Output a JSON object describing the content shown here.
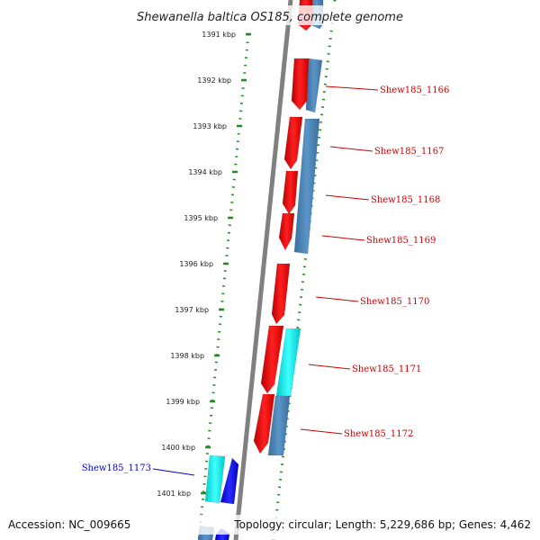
{
  "title": "Shewanella baltica OS185, complete genome",
  "footer": {
    "accession": "Accession: NC_009665",
    "summary": "Topology: circular; Length: 5,229,686 bp; Genes: 4,462"
  },
  "ticks": [
    "1391 kbp",
    "1392 kbp",
    "1393 kbp",
    "1394 kbp",
    "1395 kbp",
    "1396 kbp",
    "1397 kbp",
    "1398 kbp",
    "1399 kbp",
    "1400 kbp",
    "1401 kbp"
  ],
  "genes": [
    {
      "name": "Shew185_1166",
      "color": "#cc0000"
    },
    {
      "name": "Shew185_1167",
      "color": "#cc0000"
    },
    {
      "name": "Shew185_1168",
      "color": "#cc0000"
    },
    {
      "name": "Shew185_1169",
      "color": "#cc0000"
    },
    {
      "name": "Shew185_1170",
      "color": "#cc0000"
    },
    {
      "name": "Shew185_1171",
      "color": "#cc0000"
    },
    {
      "name": "Shew185_1172",
      "color": "#cc0000"
    },
    {
      "name": "Shew185_1173",
      "color": "#0000cc"
    }
  ],
  "colors": {
    "forward_gene": "#ee0000",
    "reverse_gene": "#0000ee",
    "forward_feature": "#00e5e5",
    "reverse_feature": "#4a85b8",
    "scale": "#228b22",
    "backbone": "#808080"
  }
}
